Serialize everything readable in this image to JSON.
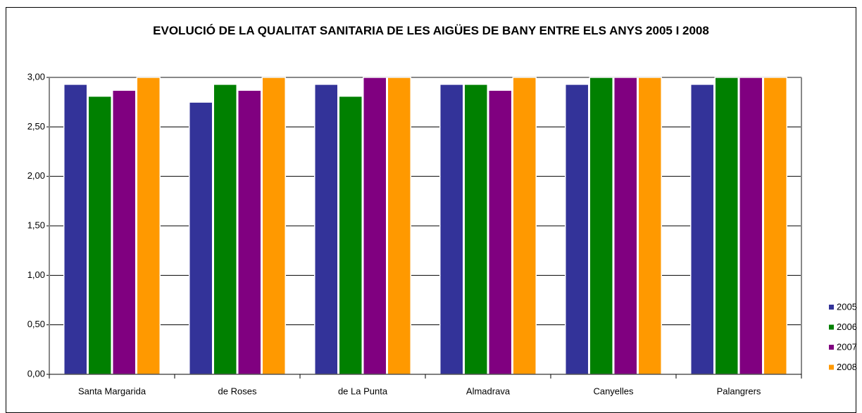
{
  "chart_data": {
    "type": "bar",
    "title": "EVOLUCIÓ DE LA QUALITAT SANITARIA DE LES AIGÜES DE BANY ENTRE ELS ANYS 2005 I 2008",
    "categories": [
      "Santa Margarida",
      "de Roses",
      "de La Punta",
      "Almadrava",
      "Canyelles",
      "Palangrers"
    ],
    "series": [
      {
        "name": "2005",
        "color": "#333399",
        "values": [
          2.93,
          2.75,
          2.93,
          2.93,
          2.93,
          2.93
        ]
      },
      {
        "name": "2006",
        "color": "#008000",
        "values": [
          2.81,
          2.93,
          2.81,
          2.93,
          3.0,
          3.0
        ]
      },
      {
        "name": "2007",
        "color": "#800080",
        "values": [
          2.87,
          2.87,
          3.0,
          2.87,
          3.0,
          3.0
        ]
      },
      {
        "name": "2008",
        "color": "#ff9900",
        "values": [
          3.0,
          3.0,
          3.0,
          3.0,
          3.0,
          3.0
        ]
      }
    ],
    "ylim": [
      0,
      3
    ],
    "yticks": [
      {
        "value": 0,
        "label": "0,00"
      },
      {
        "value": 0.5,
        "label": "0,50"
      },
      {
        "value": 1,
        "label": "1,00"
      },
      {
        "value": 1.5,
        "label": "1,50"
      },
      {
        "value": 2,
        "label": "2,00"
      },
      {
        "value": 2.5,
        "label": "2,50"
      },
      {
        "value": 3,
        "label": "3,00"
      }
    ],
    "grid": true,
    "legend": "right"
  }
}
